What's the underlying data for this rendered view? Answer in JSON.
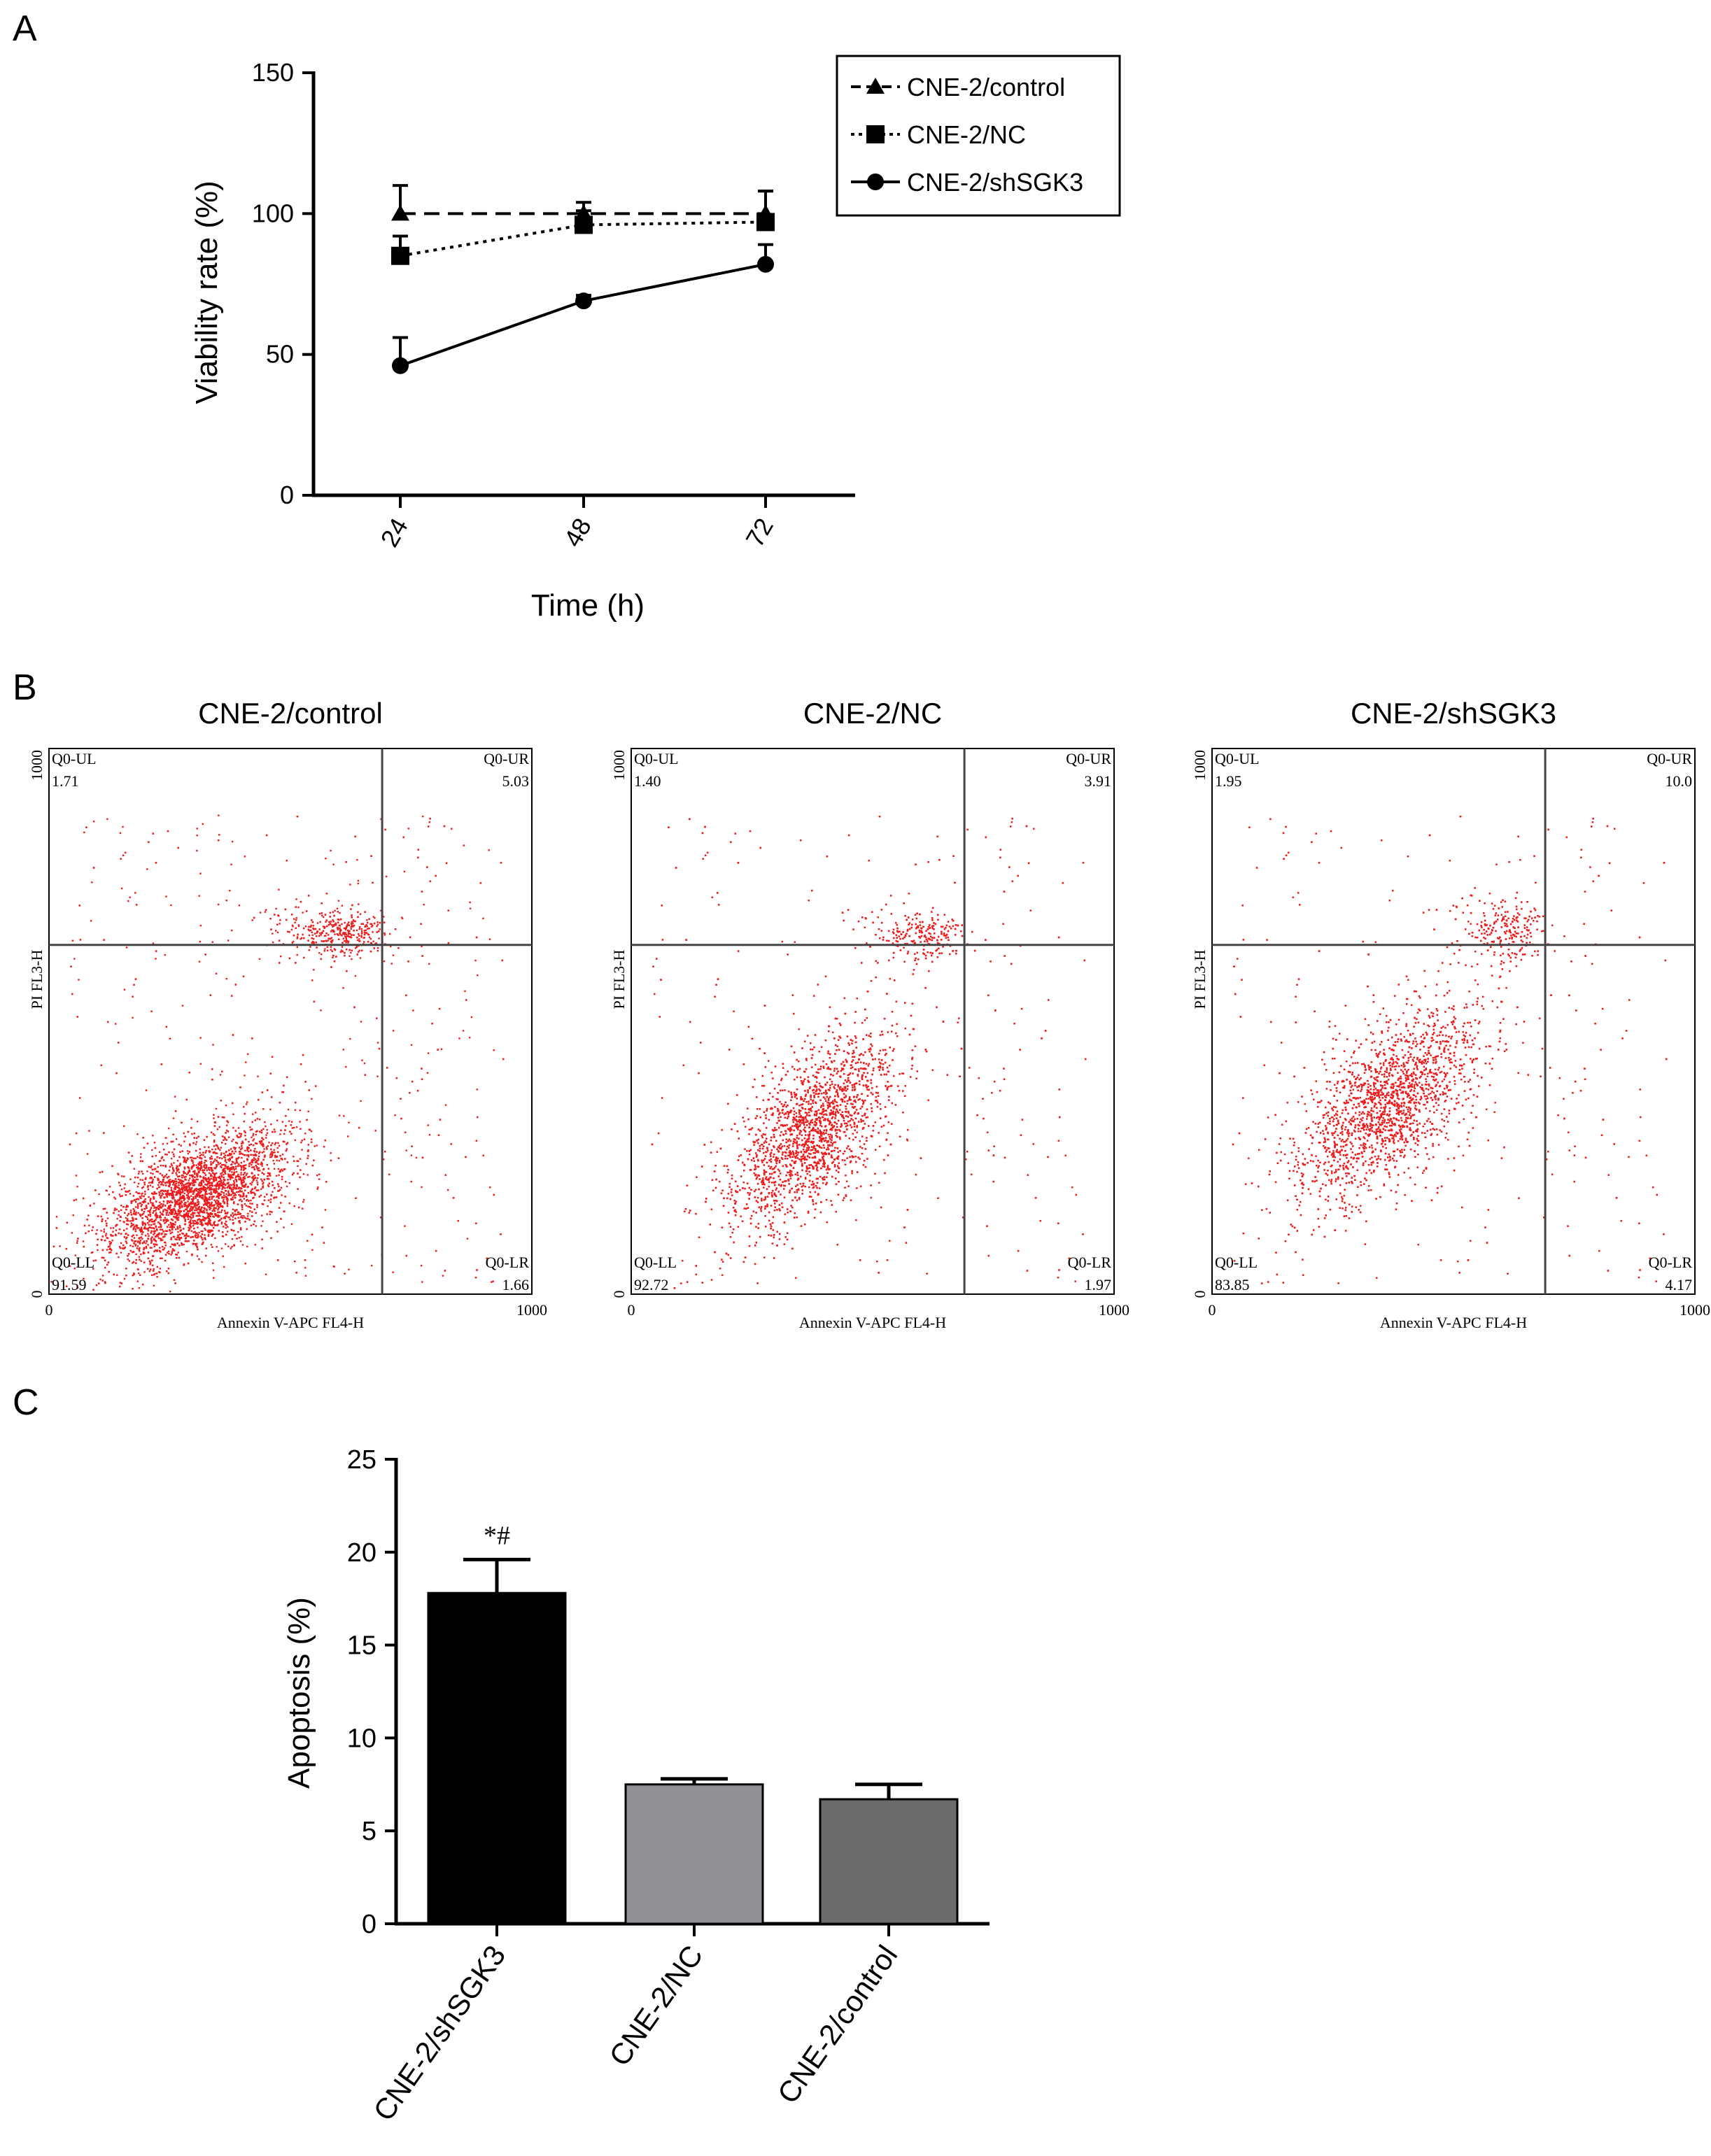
{
  "panels": {
    "a": {
      "label": "A"
    },
    "b": {
      "label": "B"
    },
    "c": {
      "label": "C"
    }
  },
  "chart_data": [
    {
      "type": "line",
      "panel": "A",
      "xlabel": "Time (h)",
      "ylabel": "Viability rate (%)",
      "x": [
        "24",
        "48",
        "72"
      ],
      "ylim": [
        0,
        150
      ],
      "yticks": [
        "0",
        "50",
        "100",
        "150"
      ],
      "legend_position": "top-right",
      "series": [
        {
          "name": "CNE-2/control",
          "style": "dashed",
          "marker": "triangle",
          "color": "#000000",
          "values": [
            100,
            100,
            100
          ],
          "errors": [
            10,
            4,
            8
          ]
        },
        {
          "name": "CNE-2/NC",
          "style": "dotted",
          "marker": "square",
          "color": "#000000",
          "values": [
            85,
            96,
            97
          ],
          "errors": [
            7,
            5,
            11
          ]
        },
        {
          "name": "CNE-2/shSGK3",
          "style": "solid",
          "marker": "circle",
          "color": "#000000",
          "values": [
            46,
            69,
            82
          ],
          "errors": [
            10,
            2,
            7
          ]
        }
      ]
    },
    {
      "type": "scatter",
      "panel": "B",
      "subtype": "flow-cytometry",
      "xlabel": "Annexin V-APC FL4-H",
      "ylabel": "PI FL3-H",
      "x_ticks": [
        "0",
        "1000"
      ],
      "y_ticks": [
        "0",
        "1000"
      ],
      "point_color": "#ee1c1c",
      "plots": [
        {
          "title": "CNE-2/control",
          "quadrants": {
            "UL": "1.71",
            "UR": "5.03",
            "LL": "91.59",
            "LR": "1.66"
          },
          "quadrant_labels": {
            "UL": "Q0-UL",
            "UR": "Q0-UR",
            "LL": "Q0-LL",
            "LR": "Q0-LR"
          },
          "gate_x": 690,
          "gate_y": 640
        },
        {
          "title": "CNE-2/NC",
          "quadrants": {
            "UL": "1.40",
            "UR": "3.91",
            "LL": "92.72",
            "LR": "1.97"
          },
          "quadrant_labels": {
            "UL": "Q0-UL",
            "UR": "Q0-UR",
            "LL": "Q0-LL",
            "LR": "Q0-LR"
          },
          "gate_x": 690,
          "gate_y": 640
        },
        {
          "title": "CNE-2/shSGK3",
          "quadrants": {
            "UL": "1.95",
            "UR": "10.0",
            "LL": "83.85",
            "LR": "4.17"
          },
          "quadrant_labels": {
            "UL": "Q0-UL",
            "UR": "Q0-UR",
            "LL": "Q0-LL",
            "LR": "Q0-LR"
          },
          "gate_x": 690,
          "gate_y": 640
        }
      ]
    },
    {
      "type": "bar",
      "panel": "C",
      "ylabel": "Apoptosis (%)",
      "categories": [
        "CNE-2/shSGK3",
        "CNE-2/NC",
        "CNE-2/control"
      ],
      "values": [
        17.8,
        7.5,
        6.7
      ],
      "errors": [
        1.8,
        0.3,
        0.8
      ],
      "colors": [
        "#000000",
        "#929296",
        "#6b6b6b"
      ],
      "annotations": [
        "*#",
        "",
        ""
      ],
      "ylim": [
        0,
        25
      ],
      "yticks": [
        "0",
        "5",
        "10",
        "15",
        "20",
        "25"
      ]
    }
  ]
}
